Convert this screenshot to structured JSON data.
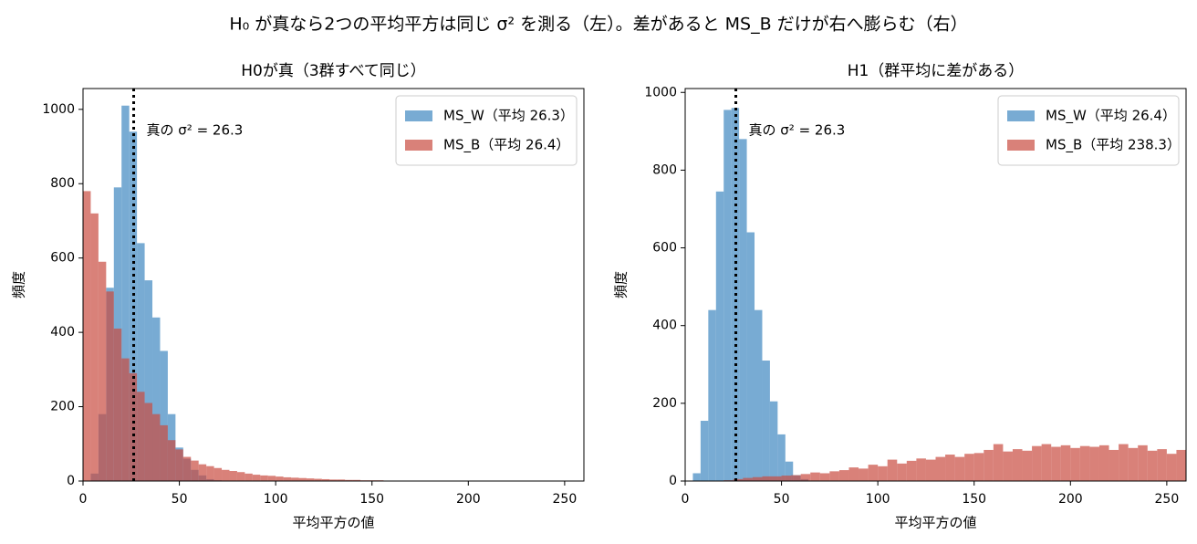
{
  "suptitle": "H₀ が真なら2つの平均平方は同じ σ² を測る（左）。差があると MS_B だけが右へ膨らむ（右）",
  "chart_data": [
    {
      "type": "histogram",
      "title": "H0が真（3群すべて同じ）",
      "x_label": "平均平方の値",
      "y_label": "頻度",
      "xlim": [
        0,
        260
      ],
      "ylim": [
        0,
        1056
      ],
      "xticks": [
        0,
        50,
        100,
        150,
        200,
        250
      ],
      "yticks": [
        0,
        200,
        400,
        600,
        800,
        1000
      ],
      "legend": "upper right",
      "vline": 26.3,
      "annotation": "真の σ² = 26.3",
      "series": [
        {
          "name": "MS_W（平均 26.3）",
          "color": "#3f87c0",
          "bins": [
            4,
            8,
            12,
            16,
            20,
            24,
            28,
            32,
            36,
            40,
            44,
            48,
            52,
            56,
            60,
            64,
            68,
            72
          ],
          "values": [
            20,
            180,
            520,
            790,
            1010,
            940,
            640,
            540,
            440,
            350,
            180,
            90,
            60,
            30,
            15,
            5,
            2
          ]
        },
        {
          "name": "MS_B（平均 26.4）",
          "color": "#c94c40",
          "bins": [
            0,
            4,
            8,
            12,
            16,
            20,
            24,
            28,
            32,
            36,
            40,
            44,
            48,
            52,
            56,
            60,
            64,
            68,
            72,
            76,
            80,
            84,
            88,
            92,
            96,
            100,
            104,
            108,
            112,
            116,
            120,
            124,
            128,
            132,
            136,
            140,
            144,
            148,
            152,
            156,
            160,
            164,
            168,
            172,
            176
          ],
          "values": [
            780,
            720,
            590,
            510,
            410,
            330,
            290,
            240,
            210,
            180,
            150,
            110,
            85,
            65,
            55,
            45,
            40,
            35,
            30,
            27,
            24,
            20,
            17,
            15,
            14,
            12,
            10,
            9,
            8,
            7,
            6,
            5,
            4,
            4,
            3,
            3,
            2,
            2,
            2,
            1,
            1,
            1,
            1,
            1
          ]
        }
      ]
    },
    {
      "type": "histogram",
      "title": "H1（群平均に差がある）",
      "x_label": "平均平方の値",
      "y_label": "頻度",
      "xlim": [
        0,
        260
      ],
      "ylim": [
        0,
        1010
      ],
      "xticks": [
        0,
        50,
        100,
        150,
        200,
        250
      ],
      "yticks": [
        0,
        200,
        400,
        600,
        800,
        1000
      ],
      "legend": "upper right",
      "vline": 26.3,
      "annotation": "真の σ² = 26.3",
      "series": [
        {
          "name": "MS_W（平均 26.4）",
          "color": "#3f87c0",
          "bins": [
            4,
            8,
            12,
            16,
            20,
            24,
            28,
            32,
            36,
            40,
            44,
            48,
            52,
            56,
            60,
            64
          ],
          "values": [
            20,
            155,
            440,
            745,
            955,
            960,
            880,
            640,
            440,
            310,
            205,
            120,
            50,
            15,
            5
          ]
        },
        {
          "name": "MS_B（平均 238.3）",
          "color": "#c94c40",
          "bins": [
            20,
            25,
            30,
            35,
            40,
            45,
            50,
            55,
            60,
            65,
            70,
            75,
            80,
            85,
            90,
            95,
            100,
            105,
            110,
            115,
            120,
            125,
            130,
            135,
            140,
            145,
            150,
            155,
            160,
            165,
            170,
            175,
            180,
            185,
            190,
            195,
            200,
            205,
            210,
            215,
            220,
            225,
            230,
            235,
            240,
            245,
            250,
            255,
            260
          ],
          "values": [
            2,
            5,
            8,
            10,
            12,
            12,
            14,
            15,
            18,
            22,
            20,
            25,
            28,
            35,
            32,
            42,
            38,
            55,
            45,
            52,
            58,
            55,
            62,
            68,
            62,
            70,
            72,
            80,
            95,
            76,
            82,
            78,
            90,
            95,
            88,
            92,
            85,
            90,
            88,
            92,
            80,
            95,
            85,
            92,
            78,
            82,
            70,
            80
          ]
        }
      ]
    }
  ]
}
